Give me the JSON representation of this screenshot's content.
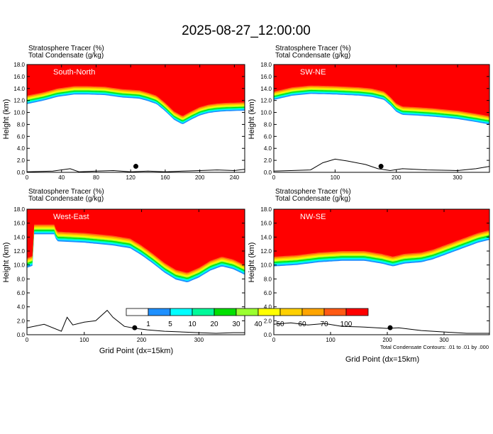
{
  "figure": {
    "title": "2025-08-27_12:00:00",
    "xlabel": "Grid Point (dx=15km)",
    "footnote": "Total Condensate Contours: .01 to .01 by .000"
  },
  "colors": {
    "levels": [
      "#ffffff",
      "#1e90ff",
      "#00ffff",
      "#00fa9a",
      "#00e000",
      "#9aff30",
      "#ffff00",
      "#ffd000",
      "#ffa500",
      "#ff5a14",
      "#ff0000"
    ],
    "axis": "#000000",
    "contour": "#000000"
  },
  "chart_data": [
    {
      "type": "heatmap",
      "panel_label": "South-North",
      "header_line1": "Stratosphere Tracer   (%)",
      "header_line2": "Total Condensate   (g/kg)",
      "ylabel": "Height (km)",
      "xlabel": "",
      "xlim": [
        0,
        252
      ],
      "ylim": [
        0,
        18
      ],
      "xticks": [
        0,
        40,
        80,
        120,
        160,
        200,
        240
      ],
      "yticks": [
        0,
        2,
        4,
        6,
        8,
        10,
        12,
        14,
        16,
        18
      ],
      "tropopause_x": [
        0,
        20,
        35,
        55,
        70,
        90,
        100,
        110,
        120,
        130,
        140,
        150,
        160,
        170,
        180,
        190,
        200,
        210,
        220,
        230,
        252
      ],
      "tropopause_km": [
        12.8,
        13.4,
        14.0,
        14.4,
        14.4,
        14.3,
        14.1,
        13.9,
        13.8,
        13.7,
        13.3,
        12.8,
        11.6,
        10.2,
        9.4,
        10.2,
        10.9,
        11.3,
        11.5,
        11.6,
        11.7
      ],
      "terrain_x": [
        0,
        30,
        50,
        60,
        80,
        100,
        120,
        140,
        160,
        180,
        200,
        220,
        240,
        252
      ],
      "terrain_km": [
        0.1,
        0.2,
        0.6,
        0.1,
        0.2,
        0.3,
        0.1,
        0.2,
        0.1,
        0.2,
        0.3,
        0.4,
        0.3,
        0.5
      ],
      "marker": {
        "x": 126,
        "y": 1.0
      }
    },
    {
      "type": "heatmap",
      "panel_label": "SW-NE",
      "header_line1": "Stratosphere Tracer   (%)",
      "header_line2": "Total Condensate   (g/kg)",
      "ylabel": "Height (km)",
      "xlabel": "",
      "xlim": [
        0,
        352
      ],
      "ylim": [
        0,
        18
      ],
      "xticks": [
        0,
        100,
        200,
        300
      ],
      "yticks": [
        0,
        2,
        4,
        6,
        8,
        10,
        12,
        14,
        16,
        18
      ],
      "tropopause_x": [
        0,
        30,
        60,
        100,
        140,
        160,
        180,
        190,
        200,
        210,
        230,
        260,
        300,
        330,
        352
      ],
      "tropopause_km": [
        13.5,
        14.2,
        14.5,
        14.4,
        14.2,
        14.0,
        13.5,
        12.6,
        11.5,
        11.0,
        10.9,
        10.7,
        10.3,
        9.8,
        9.4
      ],
      "terrain_x": [
        0,
        60,
        80,
        100,
        120,
        150,
        170,
        190,
        210,
        250,
        300,
        330,
        352
      ],
      "terrain_km": [
        0.2,
        0.4,
        1.6,
        2.2,
        1.9,
        1.3,
        0.6,
        0.3,
        0.6,
        0.4,
        0.3,
        0.6,
        1.0
      ],
      "marker": {
        "x": 175,
        "y": 1.0
      }
    },
    {
      "type": "heatmap",
      "panel_label": "West-East",
      "header_line1": "Stratosphere Tracer   (%)",
      "header_line2": "Total Condensate   (g/kg)",
      "ylabel": "Height (km)",
      "xlabel": "Grid Point (dx=15km)",
      "xlim": [
        0,
        380
      ],
      "ylim": [
        0,
        18
      ],
      "xticks": [
        0,
        100,
        200,
        300
      ],
      "yticks": [
        0,
        2,
        4,
        6,
        8,
        10,
        12,
        14,
        16,
        18
      ],
      "tropopause_x": [
        0,
        10,
        11,
        50,
        51,
        100,
        150,
        180,
        200,
        220,
        240,
        260,
        280,
        300,
        320,
        340,
        360,
        380
      ],
      "tropopause_km": [
        11.0,
        11.3,
        15.8,
        15.8,
        14.8,
        14.6,
        14.2,
        13.8,
        12.8,
        11.6,
        10.3,
        9.3,
        8.9,
        9.6,
        10.6,
        11.2,
        10.8,
        10.0
      ],
      "terrain_x": [
        0,
        30,
        60,
        70,
        80,
        100,
        120,
        140,
        150,
        170,
        190,
        210,
        240,
        270,
        300,
        330,
        360,
        380
      ],
      "terrain_km": [
        1.0,
        1.5,
        0.5,
        2.5,
        1.4,
        1.8,
        2.0,
        3.5,
        2.5,
        1.2,
        0.9,
        0.7,
        0.5,
        0.4,
        0.3,
        0.2,
        0.3,
        0.3
      ],
      "marker": {
        "x": 188,
        "y": 1.0
      }
    },
    {
      "type": "heatmap",
      "panel_label": "NW-SE",
      "header_line1": "Stratosphere Tracer   (%)",
      "header_line2": "Total Condensate   (g/kg)",
      "ylabel": "Height (km)",
      "xlabel": "Grid Point (dx=15km)",
      "xlim": [
        0,
        380
      ],
      "ylim": [
        0,
        18
      ],
      "xticks": [
        0,
        100,
        200,
        300
      ],
      "yticks": [
        0,
        2,
        4,
        6,
        8,
        10,
        12,
        14,
        16,
        18
      ],
      "tropopause_x": [
        0,
        40,
        80,
        120,
        160,
        190,
        210,
        230,
        260,
        280,
        300,
        320,
        340,
        360,
        380
      ],
      "tropopause_km": [
        11.2,
        11.4,
        11.8,
        12.0,
        12.0,
        11.6,
        11.2,
        11.6,
        11.8,
        12.2,
        12.8,
        13.4,
        14.0,
        14.6,
        15.0
      ],
      "terrain_x": [
        0,
        30,
        60,
        90,
        120,
        160,
        200,
        220,
        260,
        300,
        340,
        380
      ],
      "terrain_km": [
        1.5,
        1.7,
        1.4,
        1.6,
        1.2,
        1.1,
        0.9,
        1.0,
        0.6,
        0.4,
        0.2,
        0.2
      ],
      "marker": {
        "x": 205,
        "y": 1.0
      }
    }
  ],
  "colorbar": {
    "tick_labels": [
      "1",
      "5",
      "10",
      "20",
      "30",
      "40",
      "50",
      "60",
      "70",
      "100"
    ]
  }
}
